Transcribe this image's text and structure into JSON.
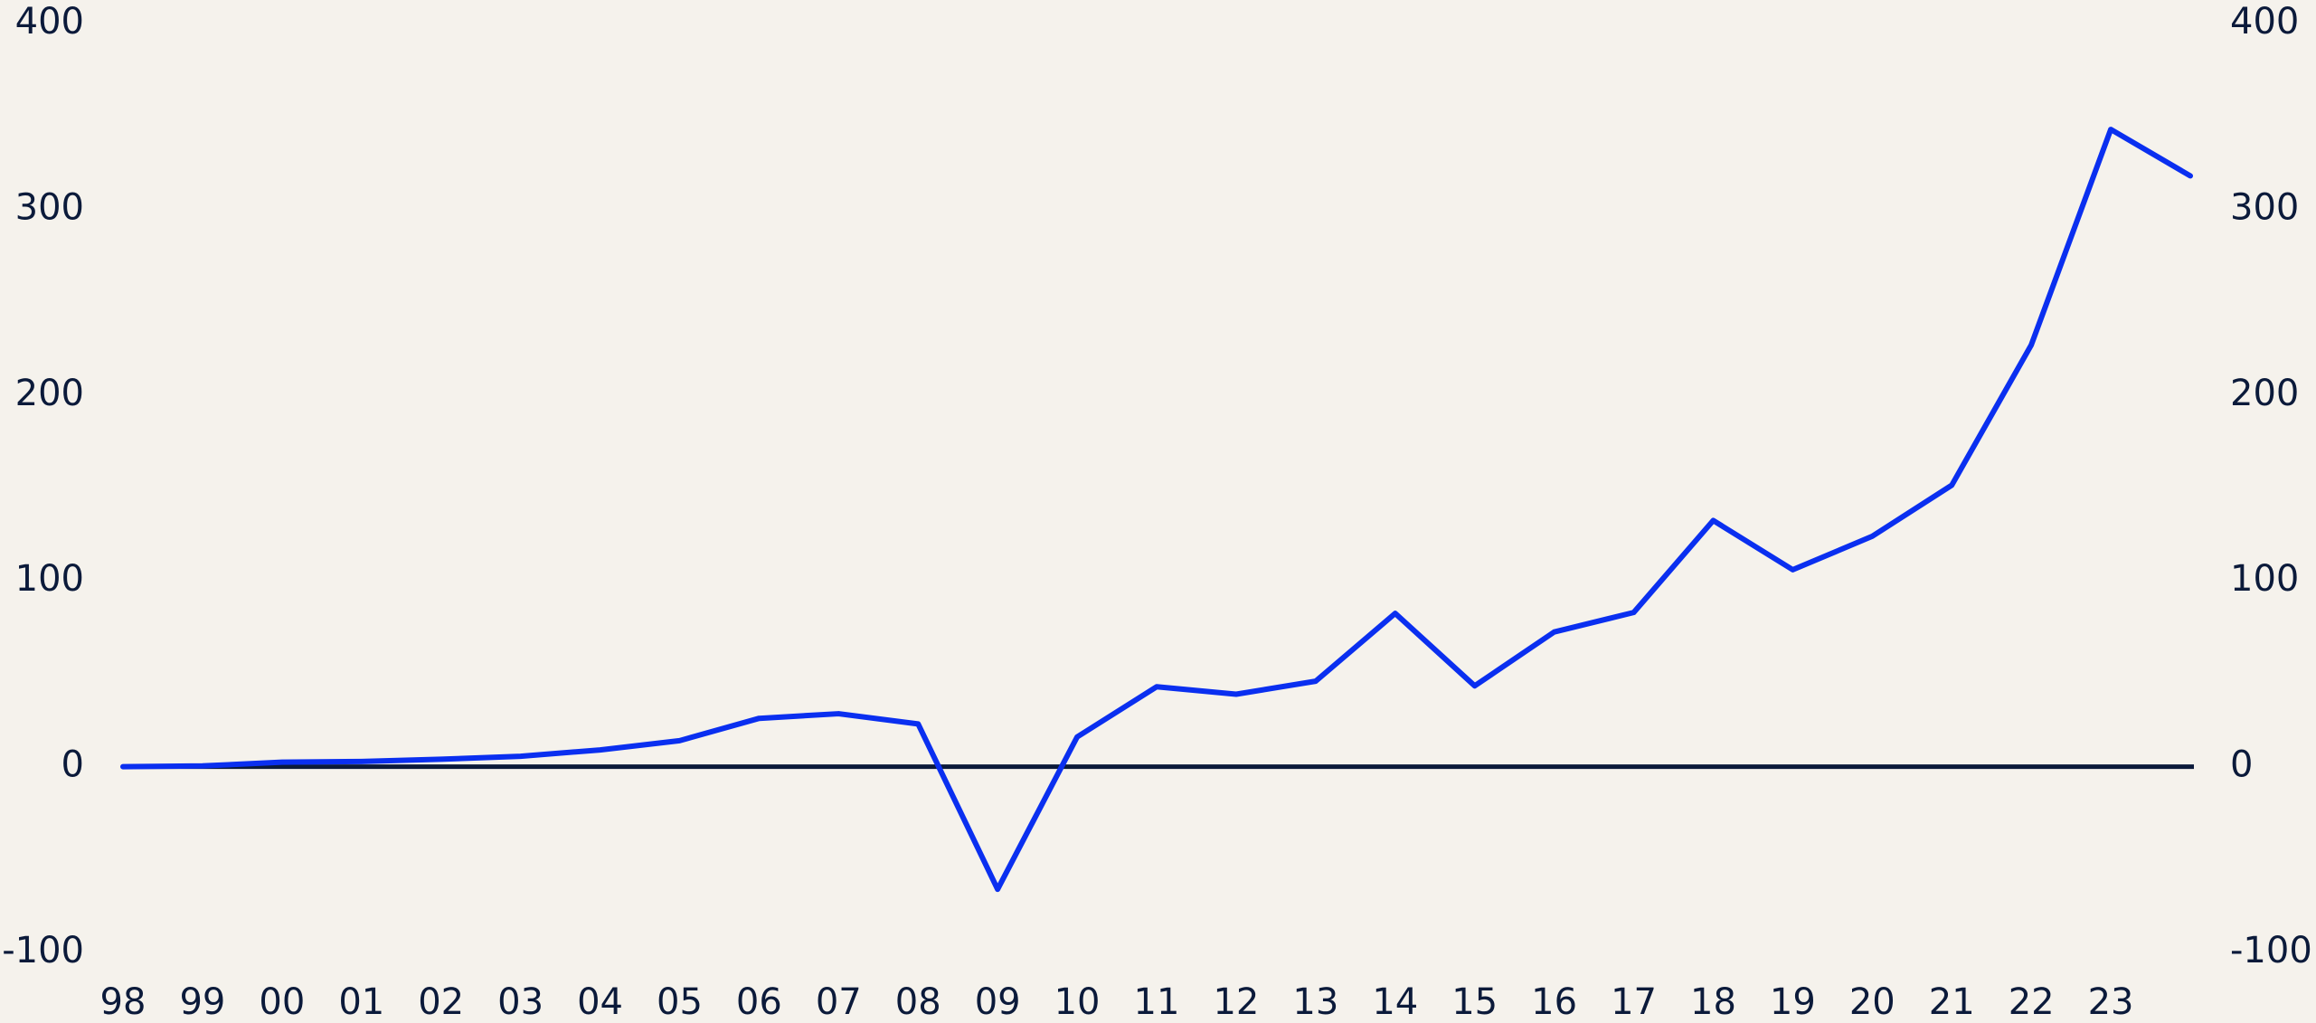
{
  "chart_data": {
    "type": "line",
    "categories": [
      "98",
      "99",
      "00",
      "01",
      "02",
      "03",
      "04",
      "05",
      "06",
      "07",
      "08",
      "09",
      "10",
      "11",
      "12",
      "13",
      "14",
      "15",
      "16",
      "17",
      "18",
      "19",
      "20",
      "21",
      "22",
      "23",
      null
    ],
    "series": [
      {
        "color": "#0a2ff0",
        "values": [
          0,
          0.4,
          2.4,
          2.8,
          4,
          5.6,
          9,
          14,
          26,
          28.5,
          23,
          -66,
          16,
          43,
          39,
          46,
          82.5,
          43.5,
          72.5,
          83,
          132.5,
          106,
          124,
          151.5,
          227,
          343,
          318
        ]
      }
    ],
    "ylim": [
      -100,
      400
    ],
    "yticks": [
      -100,
      0,
      100,
      200,
      300,
      400
    ],
    "y2lim": [
      -100,
      400
    ],
    "y2ticks": [
      -100,
      0,
      100,
      200,
      300,
      400
    ],
    "grid": false
  }
}
